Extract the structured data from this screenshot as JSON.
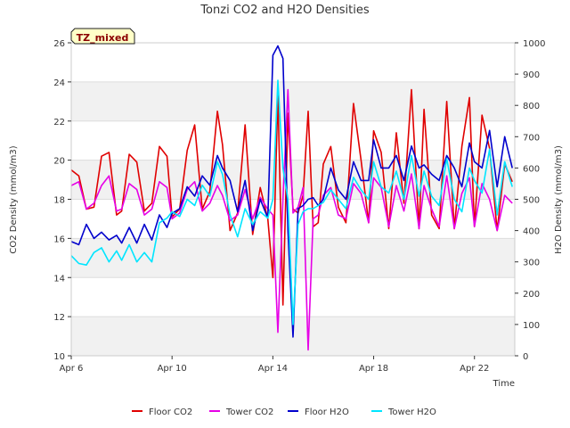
{
  "chart_data": {
    "type": "line",
    "title": "Tonzi CO2 and H2O Densities",
    "badge": "TZ_mixed",
    "xlabel": "Time",
    "ylabel_left": "CO2 Density (mmol/m3)",
    "ylabel_right": "H2O Density (mmol/m3)",
    "x_range_days": [
      6,
      23.6
    ],
    "ylim_left": [
      10,
      26
    ],
    "ylim_right": [
      0,
      1000
    ],
    "x_ticks": [
      {
        "day": 6,
        "label": "Apr 6"
      },
      {
        "day": 10,
        "label": "Apr 10"
      },
      {
        "day": 14,
        "label": "Apr 14"
      },
      {
        "day": 18,
        "label": "Apr 18"
      },
      {
        "day": 22,
        "label": "Apr 22"
      }
    ],
    "y_ticks_left": [
      10,
      12,
      14,
      16,
      18,
      20,
      22,
      24,
      26
    ],
    "y_ticks_right": [
      0,
      100,
      200,
      300,
      400,
      500,
      600,
      700,
      800,
      900,
      1000
    ],
    "grid": true,
    "legend_position": "bottom",
    "series": [
      {
        "name": "Floor CO2",
        "axis": "left",
        "color": "#e00000",
        "x": [
          6.0,
          6.3,
          6.6,
          6.9,
          7.2,
          7.5,
          7.8,
          8.0,
          8.3,
          8.6,
          8.9,
          9.2,
          9.5,
          9.8,
          10.0,
          10.3,
          10.6,
          10.9,
          11.2,
          11.5,
          11.8,
          12.0,
          12.3,
          12.6,
          12.9,
          13.2,
          13.5,
          13.8,
          14.0,
          14.2,
          14.4,
          14.6,
          14.8,
          15.0,
          15.2,
          15.4,
          15.6,
          15.8,
          16.0,
          16.3,
          16.6,
          16.9,
          17.2,
          17.5,
          17.8,
          18.0,
          18.3,
          18.6,
          18.9,
          19.2,
          19.5,
          19.8,
          20.0,
          20.3,
          20.6,
          20.9,
          21.2,
          21.5,
          21.8,
          22.0,
          22.3,
          22.6,
          22.9,
          23.2,
          23.5
        ],
        "y": [
          19.5,
          19.2,
          17.5,
          17.6,
          20.2,
          20.4,
          17.2,
          17.4,
          20.3,
          19.9,
          17.4,
          17.8,
          20.7,
          20.2,
          17.1,
          17.5,
          20.5,
          21.8,
          17.5,
          18.4,
          22.5,
          20.8,
          16.4,
          17.3,
          21.8,
          16.2,
          18.6,
          17.0,
          14.0,
          23.3,
          12.6,
          22.4,
          17.5,
          17.3,
          18.2,
          22.5,
          16.6,
          16.8,
          19.8,
          20.7,
          17.6,
          16.8,
          22.9,
          20.0,
          16.8,
          21.5,
          20.4,
          16.5,
          21.4,
          17.8,
          23.6,
          16.5,
          22.6,
          17.2,
          16.5,
          23.0,
          16.5,
          20.7,
          23.2,
          16.6,
          22.3,
          20.6,
          16.4,
          19.8,
          18.9
        ]
      },
      {
        "name": "Tower CO2",
        "axis": "left",
        "color": "#e600e6",
        "x": [
          6.0,
          6.3,
          6.6,
          6.9,
          7.2,
          7.5,
          7.8,
          8.0,
          8.3,
          8.6,
          8.9,
          9.2,
          9.5,
          9.8,
          10.0,
          10.3,
          10.6,
          10.9,
          11.2,
          11.5,
          11.8,
          12.0,
          12.3,
          12.6,
          12.9,
          13.2,
          13.5,
          13.8,
          14.0,
          14.2,
          14.4,
          14.6,
          14.8,
          15.0,
          15.2,
          15.4,
          15.6,
          15.8,
          16.0,
          16.3,
          16.6,
          16.9,
          17.2,
          17.5,
          17.8,
          18.0,
          18.3,
          18.6,
          18.9,
          19.2,
          19.5,
          19.8,
          20.0,
          20.3,
          20.6,
          20.9,
          21.2,
          21.5,
          21.8,
          22.0,
          22.3,
          22.6,
          22.9,
          23.2,
          23.5
        ],
        "y": [
          18.7,
          18.9,
          17.5,
          17.8,
          18.7,
          19.2,
          17.4,
          17.5,
          18.8,
          18.5,
          17.2,
          17.5,
          18.9,
          18.6,
          17.0,
          17.3,
          18.5,
          18.9,
          17.4,
          17.8,
          18.7,
          18.2,
          16.9,
          17.2,
          18.5,
          17.0,
          18.1,
          17.5,
          17.2,
          11.2,
          18.0,
          23.6,
          17.3,
          17.6,
          18.6,
          10.3,
          17.0,
          17.2,
          18.2,
          18.6,
          17.2,
          17.0,
          18.8,
          18.3,
          16.8,
          19.1,
          18.6,
          16.6,
          18.7,
          17.4,
          19.3,
          16.5,
          18.7,
          17.5,
          16.6,
          19.2,
          16.5,
          18.3,
          19.1,
          16.6,
          18.8,
          18.0,
          16.4,
          18.2,
          17.8
        ]
      },
      {
        "name": "Floor H2O",
        "axis": "right",
        "color": "#0000cc",
        "x": [
          6.0,
          6.3,
          6.6,
          6.9,
          7.2,
          7.5,
          7.8,
          8.0,
          8.3,
          8.6,
          8.9,
          9.2,
          9.5,
          9.8,
          10.0,
          10.3,
          10.6,
          10.9,
          11.2,
          11.5,
          11.8,
          12.0,
          12.3,
          12.6,
          12.9,
          13.2,
          13.5,
          13.8,
          14.0,
          14.2,
          14.4,
          14.6,
          14.8,
          15.0,
          15.2,
          15.4,
          15.6,
          15.8,
          16.0,
          16.3,
          16.6,
          16.9,
          17.2,
          17.5,
          17.8,
          18.0,
          18.3,
          18.6,
          18.9,
          19.2,
          19.5,
          19.8,
          20.0,
          20.3,
          20.6,
          20.9,
          21.2,
          21.5,
          21.8,
          22.0,
          22.3,
          22.6,
          22.9,
          23.2,
          23.5
        ],
        "y": [
          365,
          355,
          420,
          375,
          395,
          370,
          385,
          360,
          410,
          360,
          420,
          370,
          450,
          410,
          455,
          470,
          540,
          510,
          575,
          545,
          640,
          600,
          560,
          460,
          560,
          400,
          500,
          440,
          960,
          990,
          950,
          400,
          60,
          470,
          480,
          500,
          505,
          480,
          500,
          600,
          530,
          500,
          620,
          560,
          560,
          690,
          600,
          600,
          640,
          560,
          670,
          600,
          610,
          580,
          560,
          640,
          600,
          540,
          680,
          620,
          600,
          720,
          540,
          700,
          600
        ]
      },
      {
        "name": "Tower H2O",
        "axis": "right",
        "color": "#00e5ff",
        "x": [
          6.0,
          6.3,
          6.6,
          6.9,
          7.2,
          7.5,
          7.8,
          8.0,
          8.3,
          8.6,
          8.9,
          9.2,
          9.5,
          9.8,
          10.0,
          10.3,
          10.6,
          10.9,
          11.2,
          11.5,
          11.8,
          12.0,
          12.3,
          12.6,
          12.9,
          13.2,
          13.5,
          13.8,
          14.0,
          14.2,
          14.4,
          14.6,
          14.8,
          15.0,
          15.2,
          15.4,
          15.6,
          15.8,
          16.0,
          16.3,
          16.6,
          16.9,
          17.2,
          17.5,
          17.8,
          18.0,
          18.3,
          18.6,
          18.9,
          19.2,
          19.5,
          19.8,
          20.0,
          20.3,
          20.6,
          20.9,
          21.2,
          21.5,
          21.8,
          22.0,
          22.3,
          22.6,
          22.9,
          23.2,
          23.5
        ],
        "y": [
          320,
          295,
          290,
          330,
          345,
          300,
          335,
          305,
          355,
          300,
          330,
          300,
          425,
          440,
          460,
          445,
          500,
          480,
          545,
          510,
          620,
          580,
          450,
          380,
          470,
          420,
          460,
          440,
          500,
          880,
          600,
          500,
          100,
          420,
          460,
          470,
          470,
          480,
          490,
          530,
          500,
          470,
          570,
          530,
          500,
          620,
          540,
          520,
          590,
          500,
          640,
          510,
          590,
          510,
          480,
          630,
          500,
          460,
          600,
          560,
          520,
          660,
          450,
          620,
          540
        ]
      }
    ]
  }
}
